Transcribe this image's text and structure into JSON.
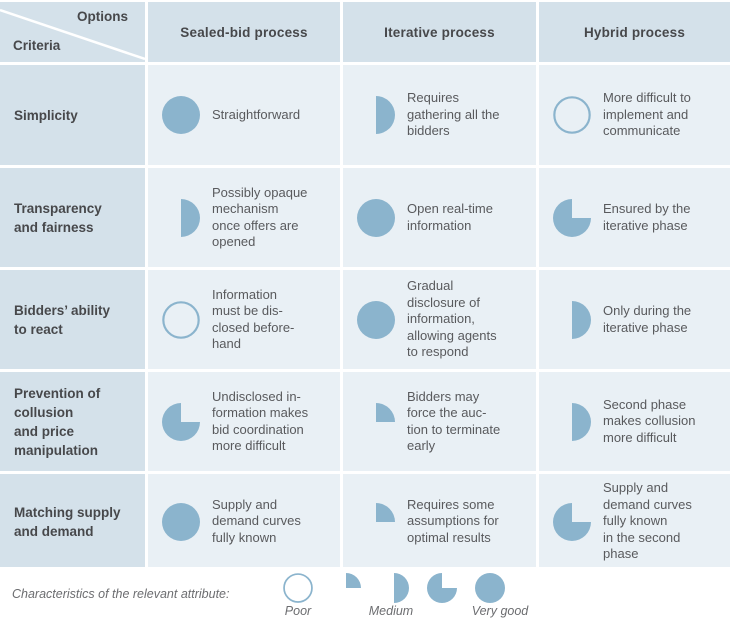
{
  "header": {
    "options_label": "Options",
    "criteria_label": "Criteria",
    "columns": [
      "Sealed-bid process",
      "Iterative process",
      "Hybrid process"
    ]
  },
  "rows": [
    {
      "criterion": "Simplicity",
      "cells": [
        {
          "rating": "very-good",
          "value": 100,
          "text": "Straightforward"
        },
        {
          "rating": "medium",
          "value": 50,
          "text": "Requires\ngathering all the\nbidders"
        },
        {
          "rating": "poor",
          "value": 0,
          "text": "More difficult to\nimplement and\ncommunicate"
        }
      ]
    },
    {
      "criterion": "Transparency\nand fairness",
      "cells": [
        {
          "rating": "medium",
          "value": 50,
          "text": "Possibly opaque\nmechanism\nonce offers are\nopened"
        },
        {
          "rating": "very-good",
          "value": 100,
          "text": "Open real-time\ninformation"
        },
        {
          "rating": "good",
          "value": 75,
          "text": "Ensured by the\niterative phase"
        }
      ]
    },
    {
      "criterion": "Bidders’ ability\nto react",
      "cells": [
        {
          "rating": "poor",
          "value": 0,
          "text": "Information\nmust be dis-\nclosed before-\nhand"
        },
        {
          "rating": "very-good",
          "value": 100,
          "text": "Gradual\ndisclosure of\ninformation,\nallowing agents\nto respond"
        },
        {
          "rating": "medium",
          "value": 50,
          "text": "Only during the\niterative phase"
        }
      ]
    },
    {
      "criterion": "Prevention of\ncollusion\nand price\nmanipulation",
      "cells": [
        {
          "rating": "good",
          "value": 75,
          "text": "Undisclosed in-\nformation makes\nbid coordination\nmore difficult"
        },
        {
          "rating": "fair",
          "value": 25,
          "text": "Bidders may\nforce the auc-\ntion to terminate\nearly"
        },
        {
          "rating": "medium",
          "value": 50,
          "text": "Second phase\nmakes collusion\nmore difficult"
        }
      ]
    },
    {
      "criterion": "Matching supply\nand demand",
      "cells": [
        {
          "rating": "very-good",
          "value": 100,
          "text": "Supply and\ndemand curves\nfully known"
        },
        {
          "rating": "fair",
          "value": 25,
          "text": "Requires some\nassumptions for\noptimal results"
        },
        {
          "rating": "good",
          "value": 75,
          "text": "Supply and\ndemand curves\nfully known\nin the second\nphase"
        }
      ]
    }
  ],
  "legend": {
    "caption": "Characteristics of the relevant attribute:",
    "scale": {
      "s0": 0,
      "s1": 25,
      "s2": 50,
      "s3": 75,
      "s4": 100
    },
    "labels": {
      "poor": "Poor",
      "medium": "Medium",
      "very_good": "Very good"
    }
  },
  "colors": {
    "ball": "#8bb4cd",
    "header_bg": "#d4e1ea",
    "cell_bg": "#e9f0f5",
    "header_text": "#47484b",
    "body_text": "#595a5d",
    "legend_text": "#6c6d70"
  }
}
